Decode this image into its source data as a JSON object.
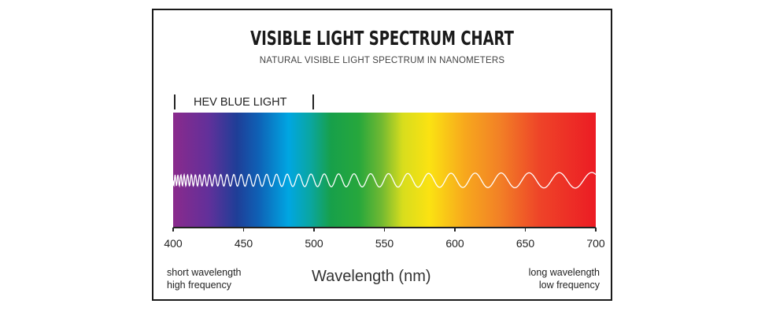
{
  "title": "VISIBLE LIGHT SPECTRUM CHART",
  "subtitle": "NATURAL VISIBLE LIGHT SPECTRUM IN NANOMETERS",
  "hev": {
    "label": "HEV BLUE LIGHT",
    "range_nm": [
      400,
      500
    ]
  },
  "axis": {
    "xlabel": "Wavelength (nm)",
    "min": 400,
    "max": 700,
    "ticks": [
      "400",
      "450",
      "500",
      "550",
      "600",
      "650",
      "700"
    ]
  },
  "left_note": {
    "line1": "short wavelength",
    "line2": "high frequency"
  },
  "right_note": {
    "line1": "long wavelength",
    "line2": "low frequency"
  },
  "spectrum_colors": [
    {
      "nm": 400,
      "color": "#8a2a8c"
    },
    {
      "nm": 425,
      "color": "#62309a"
    },
    {
      "nm": 445,
      "color": "#1f3e97"
    },
    {
      "nm": 460,
      "color": "#0f5fb4"
    },
    {
      "nm": 482,
      "color": "#00a6e2"
    },
    {
      "nm": 497,
      "color": "#0aa6a3"
    },
    {
      "nm": 512,
      "color": "#17a04a"
    },
    {
      "nm": 532,
      "color": "#27a73c"
    },
    {
      "nm": 548,
      "color": "#71b932"
    },
    {
      "nm": 563,
      "color": "#d8dd1d"
    },
    {
      "nm": 582,
      "color": "#fbe212"
    },
    {
      "nm": 607,
      "color": "#f7a81d"
    },
    {
      "nm": 632,
      "color": "#f28026"
    },
    {
      "nm": 660,
      "color": "#ee4428"
    },
    {
      "nm": 700,
      "color": "#ec1c24"
    }
  ],
  "wave_color": "#ffffff"
}
